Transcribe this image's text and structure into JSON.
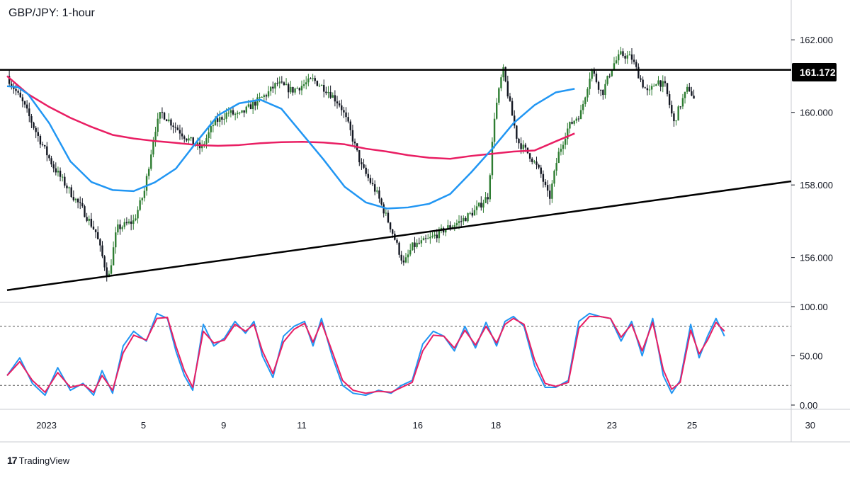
{
  "header": {
    "title": "GBP/JPY: 1-hour"
  },
  "branding": {
    "logo_glyph": "17",
    "name": "TradingView"
  },
  "price_label": {
    "value": "161.172"
  },
  "chart_data": [
    {
      "type": "candlestick",
      "title": "GBP/JPY: 1-hour",
      "ylim": [
        154.9,
        163.0
      ],
      "y_ticks": [
        "162.000",
        "160.000",
        "158.000",
        "156.000"
      ],
      "x_ticks": [
        "2023",
        "5",
        "9",
        "11",
        "16",
        "18",
        "23",
        "25",
        "30"
      ],
      "grid": false,
      "overlays": [
        {
          "name": "horizontal resistance",
          "color": "#000000",
          "value": 161.172
        },
        {
          "name": "rising trendline",
          "color": "#000000",
          "points": [
            [
              "Jan 1",
              155.1
            ],
            [
              "Jan 31",
              158.1
            ]
          ]
        },
        {
          "name": "fast moving average",
          "color": "#2196f3",
          "points": [
            [
              0,
              160.72
            ],
            [
              0.5,
              160.7
            ],
            [
              1,
              160.5
            ],
            [
              2,
              159.7
            ],
            [
              3,
              158.65
            ],
            [
              4,
              158.08
            ],
            [
              5,
              157.86
            ],
            [
              6,
              157.83
            ],
            [
              7,
              158.07
            ],
            [
              8,
              158.45
            ],
            [
              9,
              159.2
            ],
            [
              10,
              159.92
            ],
            [
              11,
              160.25
            ],
            [
              12,
              160.35
            ],
            [
              13,
              160.1
            ],
            [
              14,
              159.4
            ],
            [
              15,
              158.7
            ],
            [
              16,
              157.95
            ],
            [
              17,
              157.52
            ],
            [
              18,
              157.35
            ],
            [
              19,
              157.38
            ],
            [
              20,
              157.48
            ],
            [
              21,
              157.75
            ],
            [
              22,
              158.35
            ],
            [
              23,
              159.0
            ],
            [
              24,
              159.7
            ],
            [
              25,
              160.2
            ],
            [
              26,
              160.55
            ],
            [
              26.9,
              160.65
            ]
          ]
        },
        {
          "name": "slow moving average",
          "color": "#e91e63",
          "points": [
            [
              0,
              161.0
            ],
            [
              1,
              160.5
            ],
            [
              2,
              160.15
            ],
            [
              3,
              159.85
            ],
            [
              4,
              159.6
            ],
            [
              5,
              159.38
            ],
            [
              6,
              159.28
            ],
            [
              7,
              159.21
            ],
            [
              8,
              159.16
            ],
            [
              9,
              159.1
            ],
            [
              10,
              159.08
            ],
            [
              11,
              159.1
            ],
            [
              12,
              159.15
            ],
            [
              13,
              159.18
            ],
            [
              14,
              159.19
            ],
            [
              15,
              159.17
            ],
            [
              16,
              159.12
            ],
            [
              17,
              159.0
            ],
            [
              18,
              158.92
            ],
            [
              19,
              158.82
            ],
            [
              20,
              158.75
            ],
            [
              21,
              158.72
            ],
            [
              22,
              158.8
            ],
            [
              23,
              158.86
            ],
            [
              24,
              158.92
            ],
            [
              25,
              158.95
            ],
            [
              26,
              159.2
            ],
            [
              26.9,
              159.42
            ]
          ]
        }
      ],
      "price_path": [
        [
          0,
          161.0
        ],
        [
          0.8,
          160.2
        ],
        [
          1.5,
          159.3
        ],
        [
          2.2,
          158.5
        ],
        [
          3.0,
          157.8
        ],
        [
          3.6,
          157.3
        ],
        [
          4.2,
          156.7
        ],
        [
          4.8,
          155.4
        ],
        [
          5.2,
          156.8
        ],
        [
          6.0,
          157.0
        ],
        [
          6.5,
          157.8
        ],
        [
          7.0,
          159.5
        ],
        [
          7.3,
          160.0
        ],
        [
          7.8,
          159.7
        ],
        [
          8.5,
          159.3
        ],
        [
          9.2,
          159.0
        ],
        [
          9.8,
          159.7
        ],
        [
          10.5,
          160.0
        ],
        [
          11.0,
          159.9
        ],
        [
          11.6,
          160.2
        ],
        [
          12.3,
          160.5
        ],
        [
          12.8,
          160.8
        ],
        [
          13.5,
          160.6
        ],
        [
          14.5,
          160.9
        ],
        [
          15.2,
          160.6
        ],
        [
          15.8,
          160.2
        ],
        [
          16.2,
          159.6
        ],
        [
          16.8,
          158.5
        ],
        [
          17.5,
          157.8
        ],
        [
          18.2,
          156.8
        ],
        [
          18.8,
          155.8
        ],
        [
          19.2,
          156.3
        ],
        [
          20.0,
          156.5
        ],
        [
          20.8,
          156.8
        ],
        [
          21.5,
          157.0
        ],
        [
          22.2,
          157.3
        ],
        [
          22.8,
          157.7
        ],
        [
          23.1,
          159.9
        ],
        [
          23.5,
          161.2
        ],
        [
          23.8,
          160.3
        ],
        [
          24.2,
          159.2
        ],
        [
          24.8,
          158.8
        ],
        [
          25.3,
          158.3
        ],
        [
          25.7,
          157.6
        ],
        [
          26.1,
          158.8
        ],
        [
          26.6,
          159.6
        ],
        [
          27.2,
          160.0
        ],
        [
          27.7,
          161.2
        ],
        [
          28.2,
          160.5
        ],
        [
          28.7,
          161.3
        ],
        [
          29.1,
          161.6
        ],
        [
          29.6,
          161.5
        ],
        [
          30.1,
          160.8
        ],
        [
          30.4,
          160.5
        ],
        [
          30.8,
          160.9
        ],
        [
          31.2,
          160.7
        ],
        [
          31.6,
          159.7
        ],
        [
          31.9,
          160.2
        ],
        [
          32.3,
          160.7
        ],
        [
          32.6,
          160.3
        ]
      ],
      "x_range": [
        0,
        37.5
      ]
    },
    {
      "type": "line",
      "title": "",
      "ylim": [
        0,
        100
      ],
      "y_ticks": [
        "100.00",
        "50.00",
        "0.00"
      ],
      "levels": [
        80,
        20
      ],
      "series": [
        {
          "name": "",
          "color": "#2196f3",
          "values": [
            [
              0,
              30
            ],
            [
              0.6,
              48
            ],
            [
              1.2,
              22
            ],
            [
              1.8,
              10
            ],
            [
              2.4,
              38
            ],
            [
              3.0,
              15
            ],
            [
              3.6,
              22
            ],
            [
              4.1,
              10
            ],
            [
              4.5,
              35
            ],
            [
              5.0,
              12
            ],
            [
              5.5,
              60
            ],
            [
              6.0,
              75
            ],
            [
              6.6,
              65
            ],
            [
              7.1,
              93
            ],
            [
              7.6,
              88
            ],
            [
              8.0,
              55
            ],
            [
              8.4,
              30
            ],
            [
              8.8,
              15
            ],
            [
              9.3,
              82
            ],
            [
              9.8,
              60
            ],
            [
              10.3,
              68
            ],
            [
              10.8,
              85
            ],
            [
              11.3,
              73
            ],
            [
              11.7,
              85
            ],
            [
              12.1,
              50
            ],
            [
              12.6,
              28
            ],
            [
              13.1,
              70
            ],
            [
              13.6,
              80
            ],
            [
              14.1,
              85
            ],
            [
              14.5,
              60
            ],
            [
              14.9,
              88
            ],
            [
              15.4,
              50
            ],
            [
              15.9,
              20
            ],
            [
              16.4,
              12
            ],
            [
              17.0,
              10
            ],
            [
              17.6,
              15
            ],
            [
              18.2,
              12
            ],
            [
              18.7,
              20
            ],
            [
              19.2,
              25
            ],
            [
              19.7,
              62
            ],
            [
              20.2,
              75
            ],
            [
              20.7,
              70
            ],
            [
              21.2,
              55
            ],
            [
              21.7,
              80
            ],
            [
              22.2,
              58
            ],
            [
              22.7,
              84
            ],
            [
              23.2,
              60
            ],
            [
              23.6,
              85
            ],
            [
              24.0,
              90
            ],
            [
              24.5,
              80
            ],
            [
              25.0,
              40
            ],
            [
              25.5,
              18
            ],
            [
              26.0,
              18
            ],
            [
              26.6,
              25
            ],
            [
              27.1,
              85
            ],
            [
              27.6,
              93
            ],
            [
              28.1,
              90
            ],
            [
              28.6,
              88
            ],
            [
              29.1,
              65
            ],
            [
              29.6,
              85
            ],
            [
              30.1,
              50
            ],
            [
              30.6,
              88
            ],
            [
              31.1,
              30
            ],
            [
              31.5,
              12
            ],
            [
              31.9,
              25
            ],
            [
              32.4,
              82
            ],
            [
              32.8,
              48
            ],
            [
              33.2,
              70
            ],
            [
              33.6,
              88
            ],
            [
              34.0,
              70
            ]
          ]
        },
        {
          "name": "",
          "color": "#e91e63",
          "values": [
            [
              0,
              30
            ],
            [
              0.6,
              44
            ],
            [
              1.2,
              25
            ],
            [
              1.8,
              13
            ],
            [
              2.4,
              33
            ],
            [
              3.0,
              18
            ],
            [
              3.6,
              21
            ],
            [
              4.1,
              13
            ],
            [
              4.5,
              30
            ],
            [
              5.0,
              15
            ],
            [
              5.5,
              53
            ],
            [
              6.0,
              71
            ],
            [
              6.6,
              66
            ],
            [
              7.1,
              88
            ],
            [
              7.6,
              89
            ],
            [
              8.0,
              60
            ],
            [
              8.4,
              35
            ],
            [
              8.8,
              18
            ],
            [
              9.3,
              75
            ],
            [
              9.8,
              63
            ],
            [
              10.3,
              66
            ],
            [
              10.8,
              82
            ],
            [
              11.3,
              75
            ],
            [
              11.7,
              82
            ],
            [
              12.1,
              55
            ],
            [
              12.6,
              32
            ],
            [
              13.1,
              64
            ],
            [
              13.6,
              77
            ],
            [
              14.1,
              83
            ],
            [
              14.5,
              64
            ],
            [
              14.9,
              84
            ],
            [
              15.4,
              55
            ],
            [
              15.9,
              25
            ],
            [
              16.4,
              15
            ],
            [
              17.0,
              12
            ],
            [
              17.6,
              14
            ],
            [
              18.2,
              13
            ],
            [
              18.7,
              18
            ],
            [
              19.2,
              23
            ],
            [
              19.7,
              55
            ],
            [
              20.2,
              71
            ],
            [
              20.7,
              70
            ],
            [
              21.2,
              58
            ],
            [
              21.7,
              76
            ],
            [
              22.2,
              61
            ],
            [
              22.7,
              80
            ],
            [
              23.2,
              63
            ],
            [
              23.6,
              82
            ],
            [
              24.0,
              88
            ],
            [
              24.5,
              82
            ],
            [
              25.0,
              46
            ],
            [
              25.5,
              22
            ],
            [
              26.0,
              19
            ],
            [
              26.6,
              23
            ],
            [
              27.1,
              78
            ],
            [
              27.6,
              90
            ],
            [
              28.1,
              90
            ],
            [
              28.6,
              88
            ],
            [
              29.1,
              69
            ],
            [
              29.6,
              82
            ],
            [
              30.1,
              55
            ],
            [
              30.6,
              84
            ],
            [
              31.1,
              36
            ],
            [
              31.5,
              16
            ],
            [
              31.9,
              23
            ],
            [
              32.4,
              76
            ],
            [
              32.8,
              52
            ],
            [
              33.2,
              66
            ],
            [
              33.6,
              84
            ],
            [
              34.0,
              75
            ]
          ]
        }
      ],
      "x_range": [
        0,
        37.5
      ]
    }
  ],
  "colors": {
    "fast_ma": "#2196f3",
    "slow_ma": "#e91e63",
    "candle_up": "#2e7d32",
    "candle_down": "#131722",
    "lines": "#000000"
  }
}
